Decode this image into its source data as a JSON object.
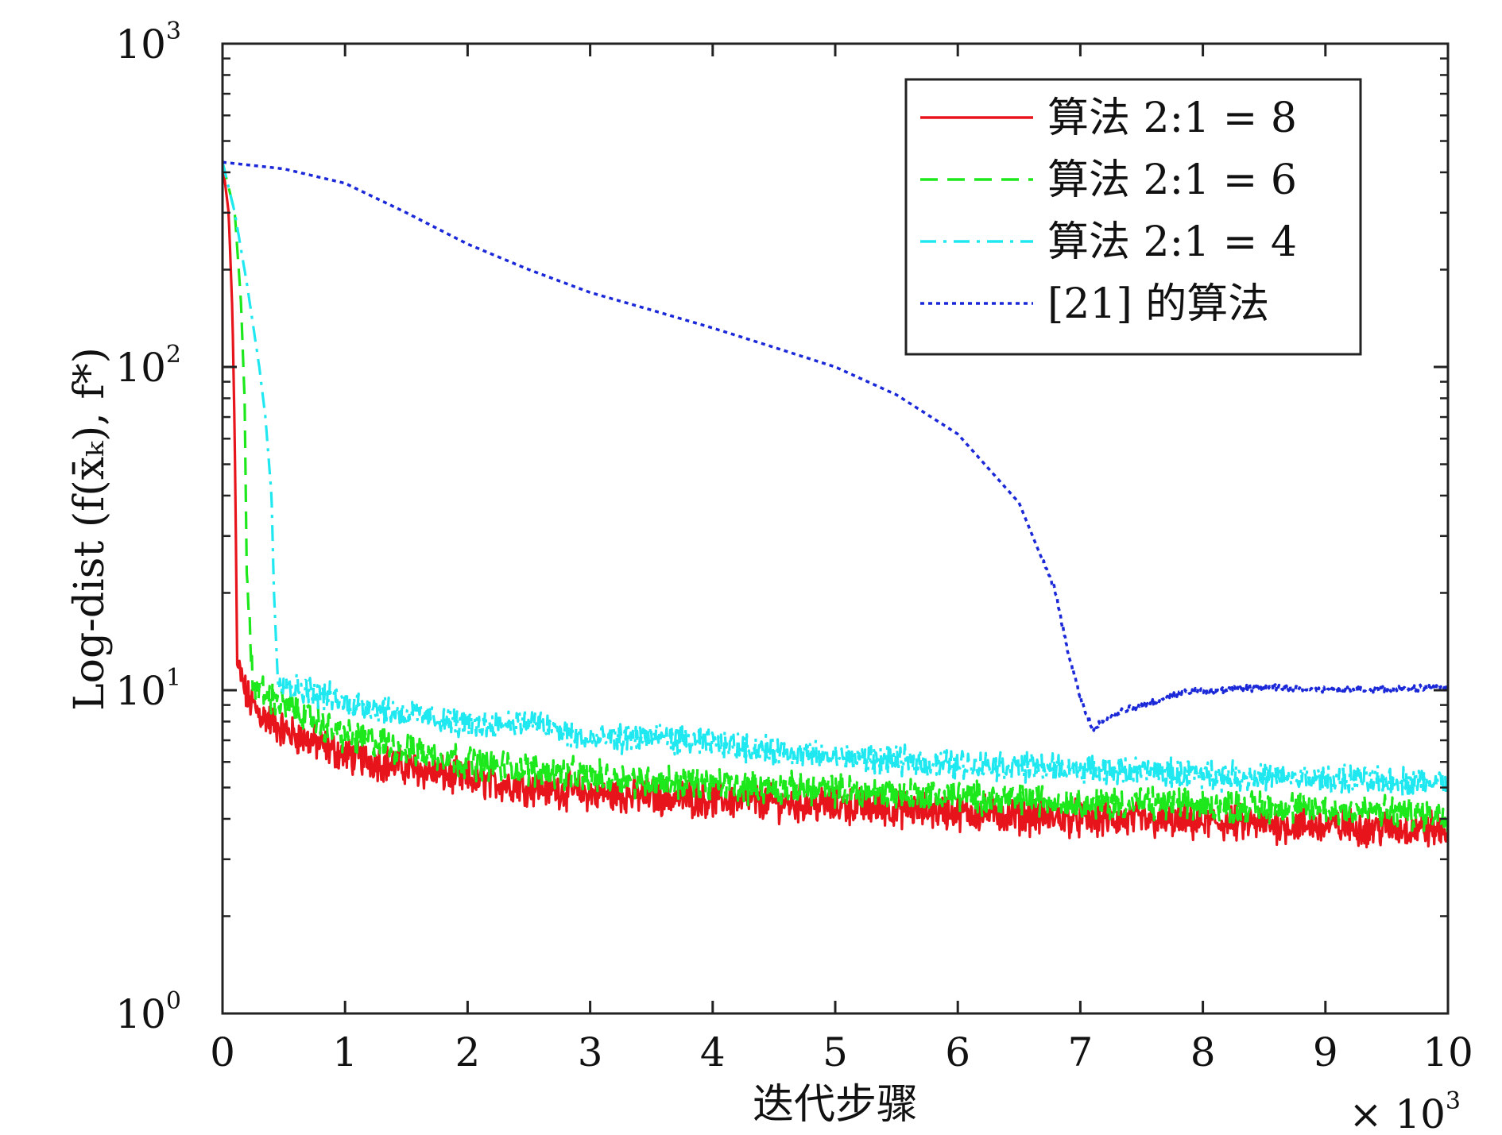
{
  "chart_data": {
    "type": "line",
    "title": "",
    "xlabel": "迭代步骤",
    "ylabel": "Log-dist (f(x̄ₖ), f*)",
    "x_multiplier": "× 10³",
    "x_multiplier_base": "× 10",
    "x_multiplier_exp": "3",
    "y_scale": "log",
    "xlim": [
      0,
      10000
    ],
    "ylim": [
      1,
      1000
    ],
    "x_ticks": [
      {
        "value": 0,
        "label": "0"
      },
      {
        "value": 1000,
        "label": "1"
      },
      {
        "value": 2000,
        "label": "2"
      },
      {
        "value": 3000,
        "label": "3"
      },
      {
        "value": 4000,
        "label": "4"
      },
      {
        "value": 5000,
        "label": "5"
      },
      {
        "value": 6000,
        "label": "6"
      },
      {
        "value": 7000,
        "label": "7"
      },
      {
        "value": 8000,
        "label": "8"
      },
      {
        "value": 9000,
        "label": "9"
      },
      {
        "value": 10000,
        "label": "10"
      }
    ],
    "y_ticks": [
      {
        "value": 1,
        "base": "10",
        "exp": "0"
      },
      {
        "value": 10,
        "base": "10",
        "exp": "1"
      },
      {
        "value": 100,
        "base": "10",
        "exp": "2"
      },
      {
        "value": 1000,
        "base": "10",
        "exp": "3"
      }
    ],
    "grid": false,
    "legend_position": "top-right",
    "series": [
      {
        "name": "算法 2:1 = 8",
        "color": "#e8141b",
        "dash": "solid",
        "x": [
          0,
          50,
          80,
          100,
          120,
          150,
          200,
          300,
          500,
          1000,
          2000,
          3000,
          4000,
          5000,
          6000,
          7000,
          8000,
          9000,
          10000
        ],
        "y": [
          430,
          300,
          150,
          60,
          12,
          11,
          9.5,
          8.5,
          7.5,
          6.3,
          5.3,
          4.8,
          4.6,
          4.4,
          4.2,
          4.0,
          3.9,
          3.8,
          3.7
        ]
      },
      {
        "name": "算法 2:1 = 6",
        "color": "#1ce81c",
        "dash": "dashed",
        "x": [
          0,
          100,
          150,
          180,
          200,
          250,
          300,
          500,
          1000,
          2000,
          3000,
          4000,
          5000,
          6000,
          7000,
          8000,
          9000,
          10000
        ],
        "y": [
          430,
          300,
          160,
          80,
          20,
          10.5,
          10,
          9,
          7.2,
          6.0,
          5.4,
          5.1,
          4.9,
          4.7,
          4.5,
          4.4,
          4.3,
          4.1
        ]
      },
      {
        "name": "算法 2:1 = 4",
        "color": "#20e8f0",
        "dash": "dashdot",
        "x": [
          0,
          100,
          200,
          300,
          350,
          400,
          420,
          450,
          500,
          700,
          1000,
          2000,
          2500,
          3000,
          3500,
          4000,
          5000,
          6000,
          7000,
          8000,
          9000,
          10000
        ],
        "y": [
          430,
          300,
          180,
          100,
          70,
          40,
          20,
          11,
          10.5,
          10,
          9.2,
          7.8,
          8.0,
          7.0,
          7.2,
          6.8,
          6.2,
          5.9,
          5.7,
          5.5,
          5.3,
          5.2
        ]
      },
      {
        "name": "[21] 的算法",
        "color": "#1a28d8",
        "dash": "dotted",
        "x": [
          0,
          500,
          1000,
          1500,
          2000,
          2500,
          3000,
          3500,
          4000,
          4500,
          5000,
          5500,
          6000,
          6500,
          6800,
          6900,
          7000,
          7100,
          7200,
          7400,
          7600,
          7800,
          8000,
          8500,
          9000,
          9500,
          10000
        ],
        "y": [
          430,
          410,
          370,
          300,
          240,
          200,
          170,
          150,
          132,
          115,
          100,
          82,
          62,
          38,
          20,
          13,
          9.5,
          7.5,
          8.2,
          8.8,
          9.2,
          9.8,
          10.0,
          10.2,
          10.0,
          10.1,
          10.2
        ]
      }
    ]
  }
}
